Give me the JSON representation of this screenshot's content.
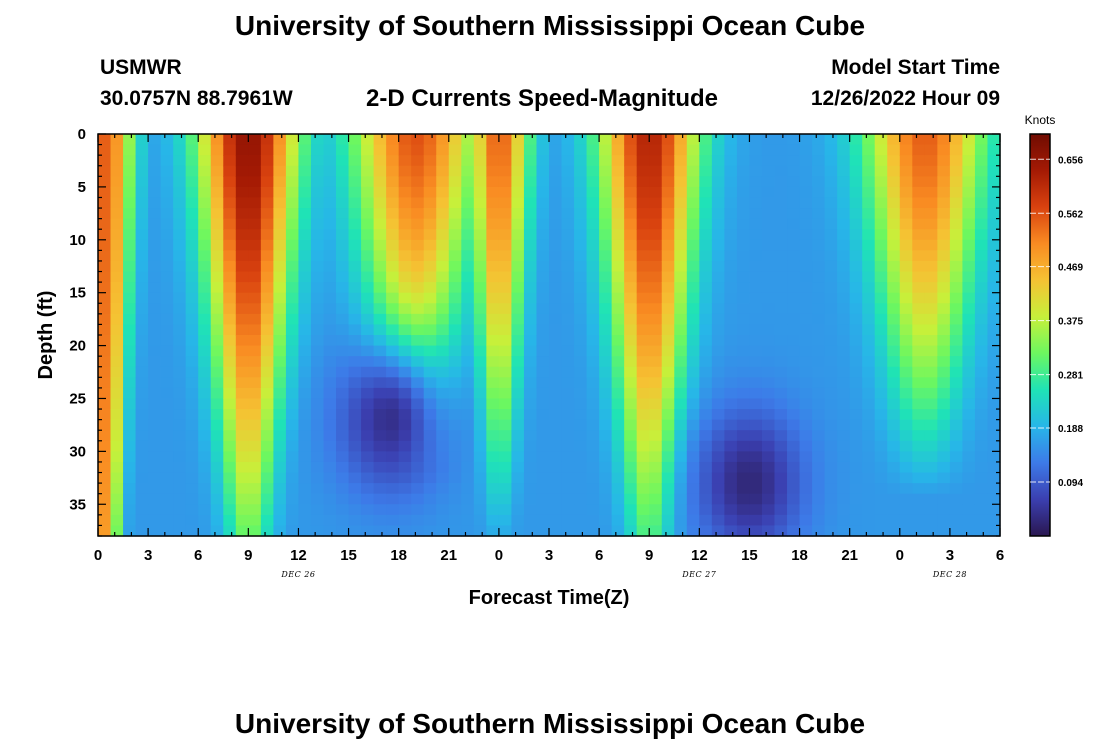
{
  "page": {
    "title": "University of Southern Mississippi Ocean Cube",
    "footer_title": "University of Southern Mississippi Ocean Cube",
    "station": "USMWR",
    "coords": "30.0757N  88.7961W",
    "subtitle": "2-D Currents Speed-Magnitude",
    "model_label": "Model Start Time",
    "model_time": "12/26/2022 Hour 09"
  },
  "chart_data": {
    "type": "heatmap",
    "title": "2-D Currents Speed-Magnitude",
    "xlabel": "Forecast Time(Z)",
    "ylabel": "Depth (ft)",
    "x_range_hours": [
      0,
      54
    ],
    "y_range_ft": [
      0,
      38
    ],
    "x_ticks": [
      {
        "h": 0,
        "label": "0"
      },
      {
        "h": 3,
        "label": "3"
      },
      {
        "h": 6,
        "label": "6"
      },
      {
        "h": 9,
        "label": "9"
      },
      {
        "h": 12,
        "label": "12"
      },
      {
        "h": 15,
        "label": "15"
      },
      {
        "h": 18,
        "label": "18"
      },
      {
        "h": 21,
        "label": "21"
      },
      {
        "h": 24,
        "label": "0"
      },
      {
        "h": 27,
        "label": "3"
      },
      {
        "h": 30,
        "label": "6"
      },
      {
        "h": 33,
        "label": "9"
      },
      {
        "h": 36,
        "label": "12"
      },
      {
        "h": 39,
        "label": "15"
      },
      {
        "h": 42,
        "label": "18"
      },
      {
        "h": 45,
        "label": "21"
      },
      {
        "h": 48,
        "label": "0"
      },
      {
        "h": 51,
        "label": "3"
      },
      {
        "h": 54,
        "label": "6"
      }
    ],
    "date_labels": [
      {
        "h": 12,
        "label": "DEC 26"
      },
      {
        "h": 36,
        "label": "DEC 27"
      },
      {
        "h": 51,
        "label": "DEC 28"
      }
    ],
    "y_ticks": [
      0,
      5,
      10,
      15,
      20,
      25,
      30,
      35
    ],
    "colorbar": {
      "unit": "Knots",
      "min": 0.0,
      "max": 0.7,
      "ticks": [
        0.656,
        0.562,
        0.469,
        0.375,
        0.281,
        0.188,
        0.094
      ],
      "colors": [
        "#2a1750",
        "#3b3fb0",
        "#3d7ae8",
        "#27b6e8",
        "#1fe3b6",
        "#6cf760",
        "#c7f03a",
        "#f5c233",
        "#f98b22",
        "#d9420f",
        "#a41a04",
        "#700c02"
      ]
    },
    "speed_model": {
      "time_step_hours": 0.75,
      "depth_step_ft": 1,
      "peaks": [
        {
          "time_h": 0.5,
          "width_h": 1.6,
          "speed_surface": 0.55,
          "speed_bottom": 0.5
        },
        {
          "time_h": 9.0,
          "width_h": 3.0,
          "speed_surface": 0.66,
          "speed_bottom": 0.32
        },
        {
          "time_h": 19.0,
          "width_h": 3.8,
          "speed_surface": 0.56,
          "speed_bottom": 0.05
        },
        {
          "time_h": 24.0,
          "width_h": 1.8,
          "speed_surface": 0.55,
          "speed_bottom": 0.18
        },
        {
          "time_h": 33.0,
          "width_h": 3.0,
          "speed_surface": 0.62,
          "speed_bottom": 0.3
        },
        {
          "time_h": 49.5,
          "width_h": 3.6,
          "speed_surface": 0.55,
          "speed_bottom": 0.1
        }
      ],
      "background_knots": 0.16,
      "lows": [
        {
          "time_h": 17.5,
          "depth_ft": 27,
          "min_knots": 0.03
        },
        {
          "time_h": 39.0,
          "depth_ft": 33,
          "min_knots": 0.02
        }
      ]
    }
  }
}
